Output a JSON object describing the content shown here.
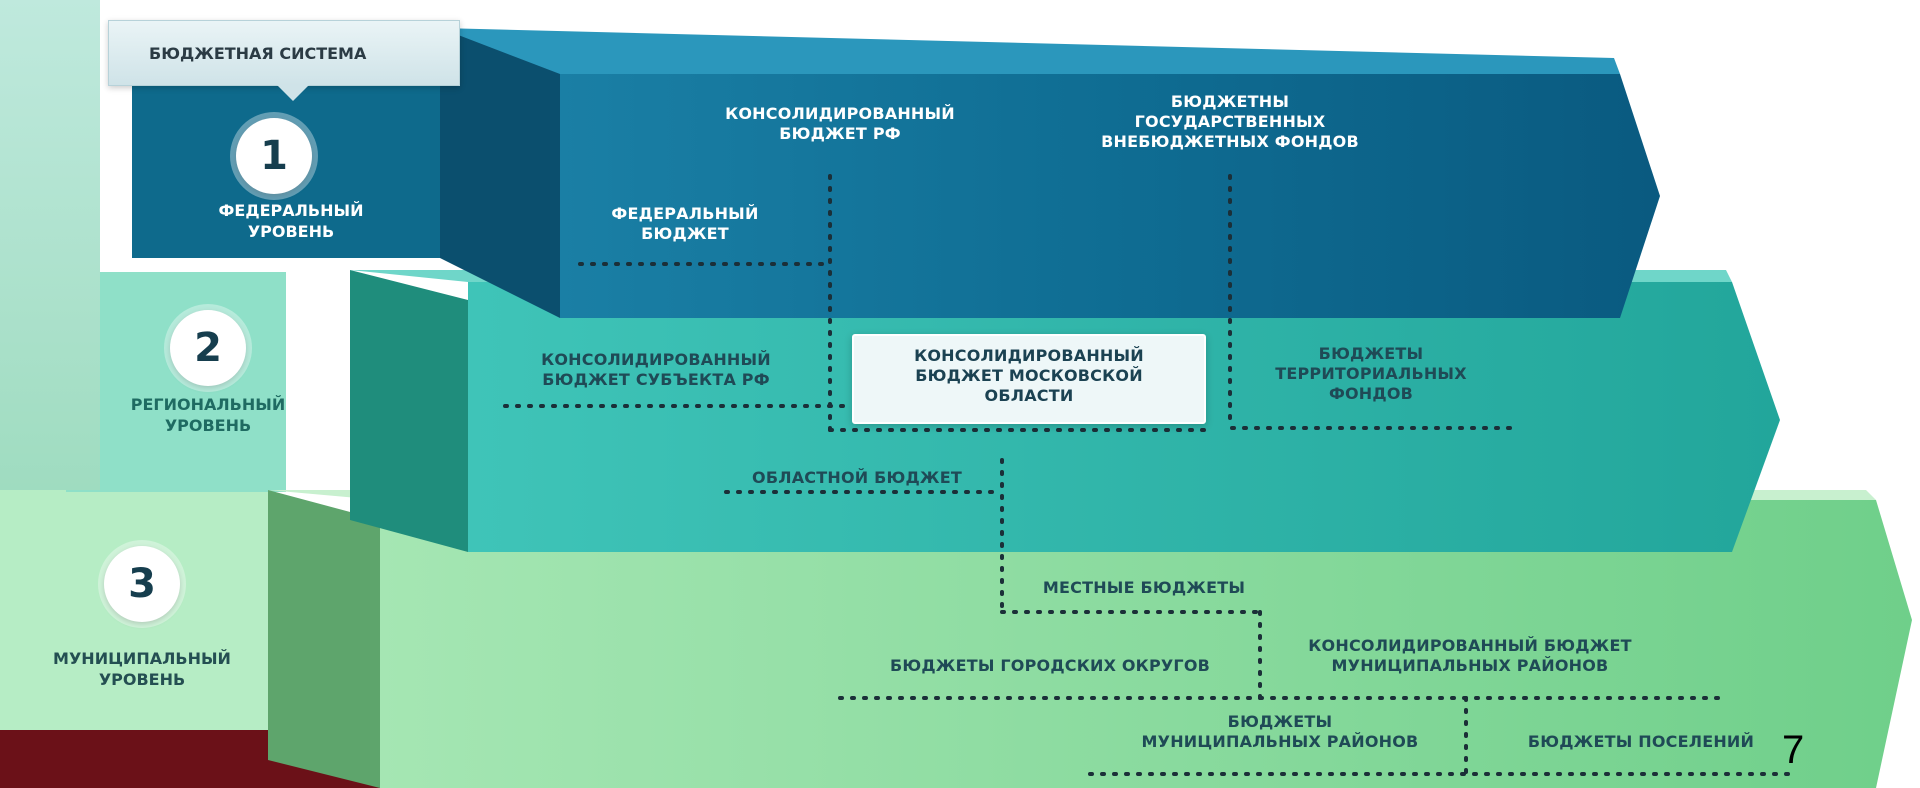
{
  "title": "БЮДЖЕТНАЯ СИСТЕМА",
  "levels": [
    {
      "number": "1",
      "name": "ФЕДЕРАЛЬНЫЙ\nУРОВЕНЬ"
    },
    {
      "number": "2",
      "name": "РЕГИОНАЛЬНЫЙ\nУРОВЕНЬ"
    },
    {
      "number": "3",
      "name": "МУНИЦИПАЛЬНЫЙ\nУРОВЕНЬ"
    }
  ],
  "federal": {
    "consolidated": "КОНСОЛИДИРОВАННЫЙ\nБЮДЖЕТ РФ",
    "extrabudgetary": "БЮДЖЕТНЫ\nГОСУДАРСТВЕННЫХ\nВНЕБЮДЖЕТНЫХ ФОНДОВ",
    "federal_budget": "ФЕДЕРАЛЬНЫЙ\nБЮДЖЕТ"
  },
  "regional": {
    "consolidated_subject": "КОНСОЛИДИРОВАННЫЙ\nБЮДЖЕТ СУБЪЕКТА РФ",
    "consolidated_moscow": "КОНСОЛИДИРОВАННЫЙ\nБЮДЖЕТ МОСКОВСКОЙ\nОБЛАСТИ",
    "territorial_funds": "БЮДЖЕТЫ\nТЕРРИТОРИАЛЬНЫХ\nФОНДОВ",
    "regional_budget": "ОБЛАСТНОЙ БЮДЖЕТ"
  },
  "municipal": {
    "local_budgets": "МЕСТНЫЕ БЮДЖЕТЫ",
    "city_districts": "БЮДЖЕТЫ ГОРОДСКИХ ОКРУГОВ",
    "consolidated_districts": "КОНСОЛИДИРОВАННЫЙ БЮДЖЕТ\nМУНИЦИПАЛЬНЫХ РАЙОНОВ",
    "municipal_districts": "БЮДЖЕТЫ\nМУНИЦИПАЛЬНЫХ РАЙОНОВ",
    "settlements": "БЮДЖЕТЫ ПОСЕЛЕНИЙ"
  },
  "page_number": "7",
  "colors": {
    "federal": "#0f6f92",
    "regional": "#35b6aa",
    "municipal": "#7fd79a",
    "corner": "#5a0d12"
  }
}
